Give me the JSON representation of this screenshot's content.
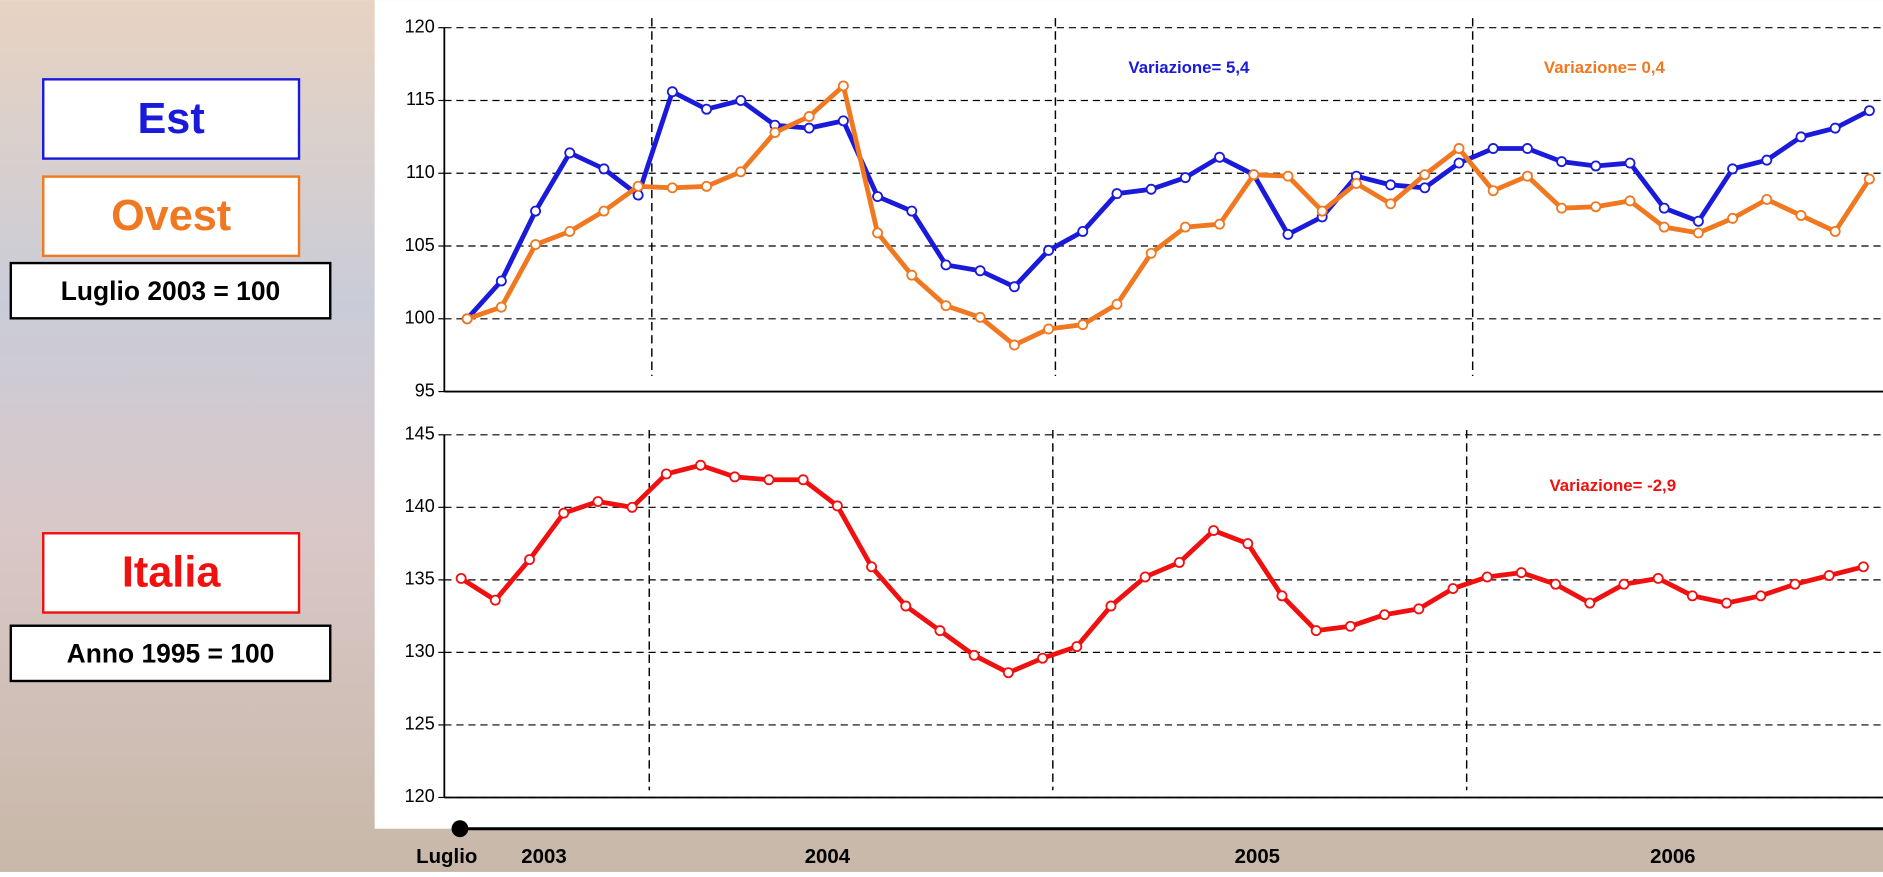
{
  "chart_data": [
    {
      "type": "line",
      "legend_note": "Luglio 2003 = 100",
      "ylim": [
        95,
        120
      ],
      "yticks": [
        95,
        100,
        105,
        110,
        115,
        120
      ],
      "grid": true,
      "xticks": [
        5.4,
        17.2,
        29.4
      ],
      "series": [
        {
          "name": "Est",
          "color": "#1a1adb",
          "values": [
            100,
            102.6,
            107.4,
            111.4,
            110.3,
            108.5,
            115.6,
            114.4,
            115.0,
            113.3,
            113.1,
            113.6,
            108.4,
            107.4,
            103.7,
            103.3,
            102.2,
            104.7,
            106.0,
            108.6,
            108.9,
            109.7,
            111.1,
            109.9,
            105.8,
            107.0,
            109.8,
            109.2,
            109.0,
            110.7,
            111.7,
            111.7,
            110.8,
            110.5,
            110.7,
            107.6,
            106.7,
            110.3,
            110.9,
            112.5,
            113.1,
            114.3
          ]
        },
        {
          "name": "Ovest",
          "color": "#f07820",
          "values": [
            100,
            100.8,
            105.1,
            106.0,
            107.4,
            109.1,
            109.0,
            109.1,
            110.1,
            112.8,
            113.9,
            116.0,
            105.9,
            103.0,
            100.9,
            100.1,
            98.2,
            99.3,
            99.6,
            101.0,
            104.5,
            106.3,
            106.5,
            109.9,
            109.8,
            107.4,
            109.3,
            107.9,
            109.9,
            111.7,
            108.8,
            109.8,
            107.6,
            107.7,
            108.1,
            106.3,
            105.9,
            106.9,
            108.2,
            107.1,
            106.0,
            109.6
          ]
        }
      ],
      "annotations": [
        {
          "text": "Variazione= 5,4",
          "color": "#1a1adb"
        },
        {
          "text": "Variazione= 0,4",
          "color": "#f07820"
        }
      ]
    },
    {
      "type": "line",
      "legend_note": "Anno 1995 = 100",
      "ylim": [
        120,
        145
      ],
      "yticks": [
        120,
        125,
        130,
        135,
        140,
        145
      ],
      "grid": true,
      "xticks": [
        5.5,
        17.3,
        29.4
      ],
      "series": [
        {
          "name": "Italia",
          "color": "#f01010",
          "values": [
            135.1,
            133.6,
            136.4,
            139.6,
            140.4,
            140.0,
            142.3,
            142.9,
            142.1,
            141.9,
            141.9,
            140.1,
            135.9,
            133.2,
            131.5,
            129.8,
            128.6,
            129.6,
            130.4,
            133.2,
            135.2,
            136.2,
            138.4,
            137.5,
            133.9,
            131.5,
            131.8,
            132.6,
            133.0,
            134.4,
            135.2,
            135.5,
            134.7,
            133.4,
            134.7,
            135.1,
            133.9,
            133.4,
            133.9,
            134.7,
            135.3,
            135.9
          ]
        }
      ],
      "annotations": [
        {
          "text": "Variazione= -2,9",
          "color": "#f01010"
        }
      ],
      "x_labels": [
        "Luglio",
        "2003",
        "2004",
        "2005",
        "2006"
      ]
    }
  ]
}
